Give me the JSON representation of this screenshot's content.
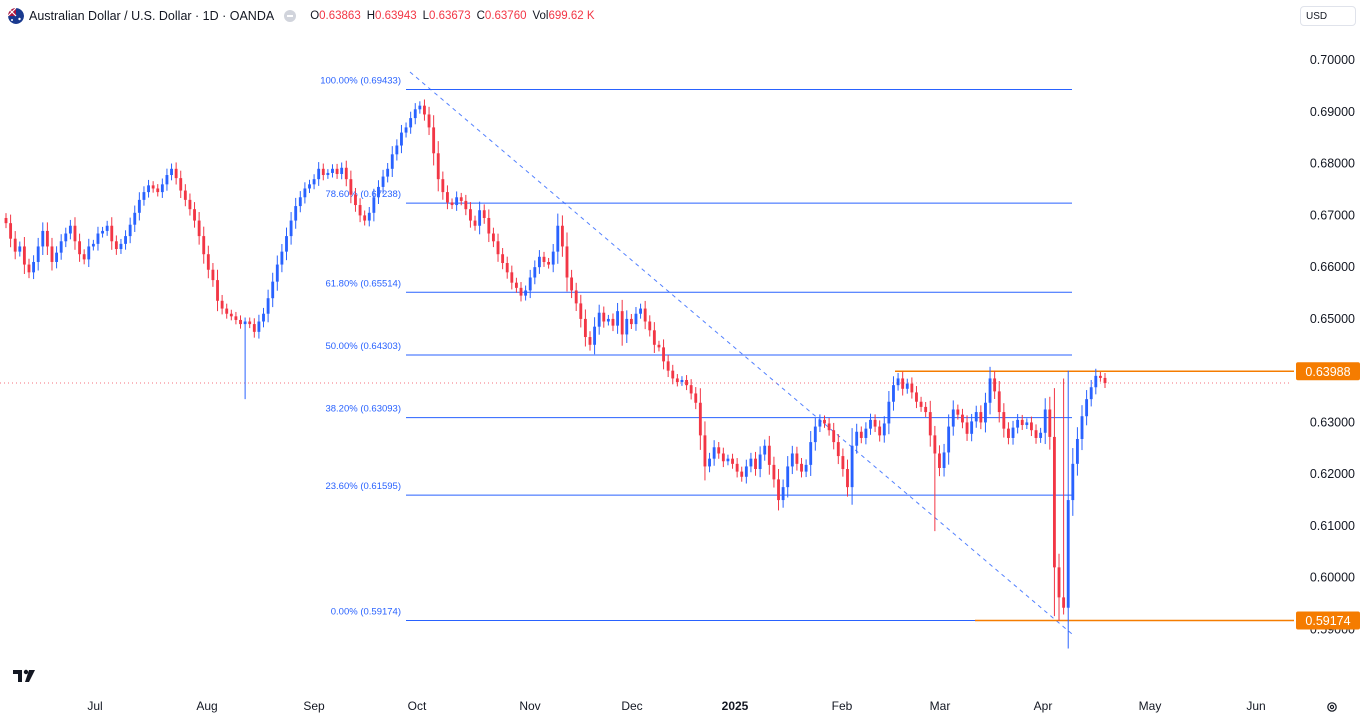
{
  "header": {
    "symbol_title": "Australian Dollar / U.S. Dollar · 1D · OANDA",
    "ohlc": [
      {
        "label": "O",
        "value": "0.63863"
      },
      {
        "label": "H",
        "value": "0.63943"
      },
      {
        "label": "L",
        "value": "0.63673"
      },
      {
        "label": "C",
        "value": "0.63760"
      },
      {
        "label": "Vol",
        "value": "699.62 K"
      }
    ]
  },
  "currency": "USD",
  "colors": {
    "up": "#2962ff",
    "down": "#f23645",
    "fib": "#2962ff",
    "highlight": "#f57c00",
    "wick_up": "#26a69a"
  },
  "chart_data": {
    "type": "candlestick",
    "title": "Australian Dollar / U.S. Dollar · 1D · OANDA",
    "yaxis_ticks": [
      "0.70000",
      "0.69000",
      "0.68000",
      "0.67000",
      "0.66000",
      "0.65000",
      "0.63000",
      "0.62000",
      "0.61000",
      "0.60000",
      "0.59000"
    ],
    "ylim": [
      0.587,
      0.7035
    ],
    "xaxis_ticks": [
      "Jul",
      "Aug",
      "Sep",
      "Oct",
      "Nov",
      "Dec",
      "2025",
      "Feb",
      "Mar",
      "Apr",
      "May",
      "Jun"
    ],
    "price_badges": [
      {
        "value": "0.63988"
      },
      {
        "value": "0.59174"
      }
    ],
    "fib_levels": [
      {
        "label": "100.00% (0.69433)",
        "value": 0.69433
      },
      {
        "label": "78.60% (0.67238)",
        "value": 0.67238
      },
      {
        "label": "61.80% (0.65514)",
        "value": 0.65514
      },
      {
        "label": "50.00% (0.64303)",
        "value": 0.64303
      },
      {
        "label": "38.20% (0.63093)",
        "value": 0.63093
      },
      {
        "label": "23.60% (0.61595)",
        "value": 0.61595
      },
      {
        "label": "0.00% (0.59174)",
        "value": 0.59174
      }
    ],
    "horizontal_lines": [
      0.63988,
      0.59174
    ],
    "last_price": 0.6376,
    "closes": [
      0.6685,
      0.6655,
      0.663,
      0.664,
      0.6605,
      0.659,
      0.661,
      0.664,
      0.667,
      0.664,
      0.661,
      0.6628,
      0.665,
      0.6665,
      0.668,
      0.665,
      0.6625,
      0.6615,
      0.664,
      0.6645,
      0.6665,
      0.667,
      0.668,
      0.665,
      0.6635,
      0.6645,
      0.666,
      0.6682,
      0.6705,
      0.673,
      0.6745,
      0.6758,
      0.6752,
      0.6745,
      0.676,
      0.6778,
      0.679,
      0.6772,
      0.6748,
      0.673,
      0.6712,
      0.669,
      0.666,
      0.6625,
      0.6595,
      0.6575,
      0.6535,
      0.652,
      0.651,
      0.6505,
      0.6498,
      0.649,
      0.6495,
      0.649,
      0.6475,
      0.6495,
      0.651,
      0.654,
      0.6572,
      0.6605,
      0.663,
      0.666,
      0.669,
      0.6718,
      0.6735,
      0.6752,
      0.676,
      0.677,
      0.679,
      0.6778,
      0.6782,
      0.679,
      0.678,
      0.6792,
      0.677,
      0.674,
      0.672,
      0.67,
      0.669,
      0.6705,
      0.6735,
      0.6755,
      0.6775,
      0.679,
      0.6818,
      0.6835,
      0.686,
      0.687,
      0.6888,
      0.6905,
      0.6912,
      0.6895,
      0.687,
      0.682,
      0.677,
      0.6745,
      0.6725,
      0.672,
      0.6735,
      0.6728,
      0.6712,
      0.669,
      0.668,
      0.671,
      0.6695,
      0.6665,
      0.665,
      0.6625,
      0.6608,
      0.659,
      0.657,
      0.656,
      0.6545,
      0.6555,
      0.658,
      0.66,
      0.662,
      0.661,
      0.6605,
      0.663,
      0.668,
      0.664,
      0.658,
      0.6555,
      0.653,
      0.65,
      0.6465,
      0.645,
      0.6485,
      0.6512,
      0.6495,
      0.65,
      0.6487,
      0.6515,
      0.647,
      0.65,
      0.649,
      0.651,
      0.652,
      0.6495,
      0.6478,
      0.645,
      0.6445,
      0.6418,
      0.64,
      0.6385,
      0.6378,
      0.6382,
      0.6372,
      0.6356,
      0.6338,
      0.6275,
      0.6215,
      0.623,
      0.6252,
      0.624,
      0.6225,
      0.623,
      0.622,
      0.6205,
      0.6195,
      0.6215,
      0.623,
      0.621,
      0.6238,
      0.6255,
      0.6218,
      0.619,
      0.615,
      0.6175,
      0.6215,
      0.624,
      0.622,
      0.6205,
      0.6218,
      0.6262,
      0.6292,
      0.6305,
      0.6298,
      0.6285,
      0.6262,
      0.6235,
      0.621,
      0.6175,
      0.6255,
      0.6282,
      0.627,
      0.6288,
      0.6305,
      0.6292,
      0.6275,
      0.6298,
      0.634,
      0.6372,
      0.6385,
      0.6365,
      0.6375,
      0.6358,
      0.634,
      0.633,
      0.632,
      0.6275,
      0.624,
      0.6212,
      0.6242,
      0.6292,
      0.6325,
      0.6315,
      0.63,
      0.6278,
      0.6302,
      0.632,
      0.63,
      0.6338,
      0.6385,
      0.636,
      0.632,
      0.6288,
      0.627,
      0.629,
      0.6305,
      0.6295,
      0.63,
      0.6285,
      0.627,
      0.628,
      0.6325,
      0.6272,
      0.602,
      0.5962,
      0.5942,
      0.615,
      0.622,
      0.6268,
      0.6312,
      0.6345,
      0.6368,
      0.639,
      0.6386,
      0.6376
    ]
  },
  "toolbar": {
    "tv_logo": "tradingview-logo",
    "settings": "gear-icon"
  }
}
